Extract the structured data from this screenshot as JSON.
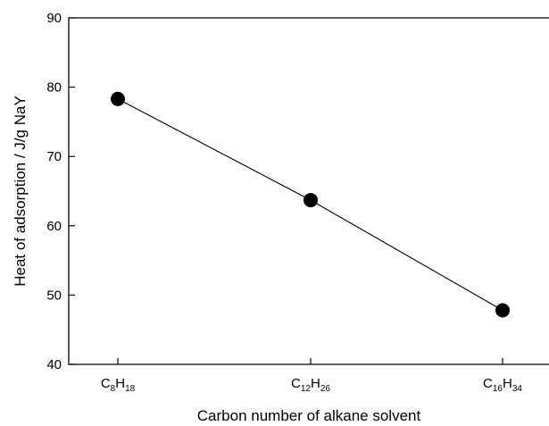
{
  "chart_data": {
    "type": "line",
    "xlabel": "Carbon number of alkane solvent",
    "ylabel": "Heat of adsorption / J/g NaY",
    "ylim": [
      40,
      90
    ],
    "yticks": [
      40,
      50,
      60,
      70,
      80,
      90
    ],
    "grid": false,
    "categories": [
      {
        "base": "C",
        "sub1": "8",
        "mid": "H",
        "sub2": "18"
      },
      {
        "base": "C",
        "sub1": "12",
        "mid": "H",
        "sub2": "26"
      },
      {
        "base": "C",
        "sub1": "16",
        "mid": "H",
        "sub2": "34"
      }
    ],
    "values": [
      78.3,
      63.7,
      47.8
    ],
    "marker": "filled-circle",
    "color": "#000000"
  }
}
